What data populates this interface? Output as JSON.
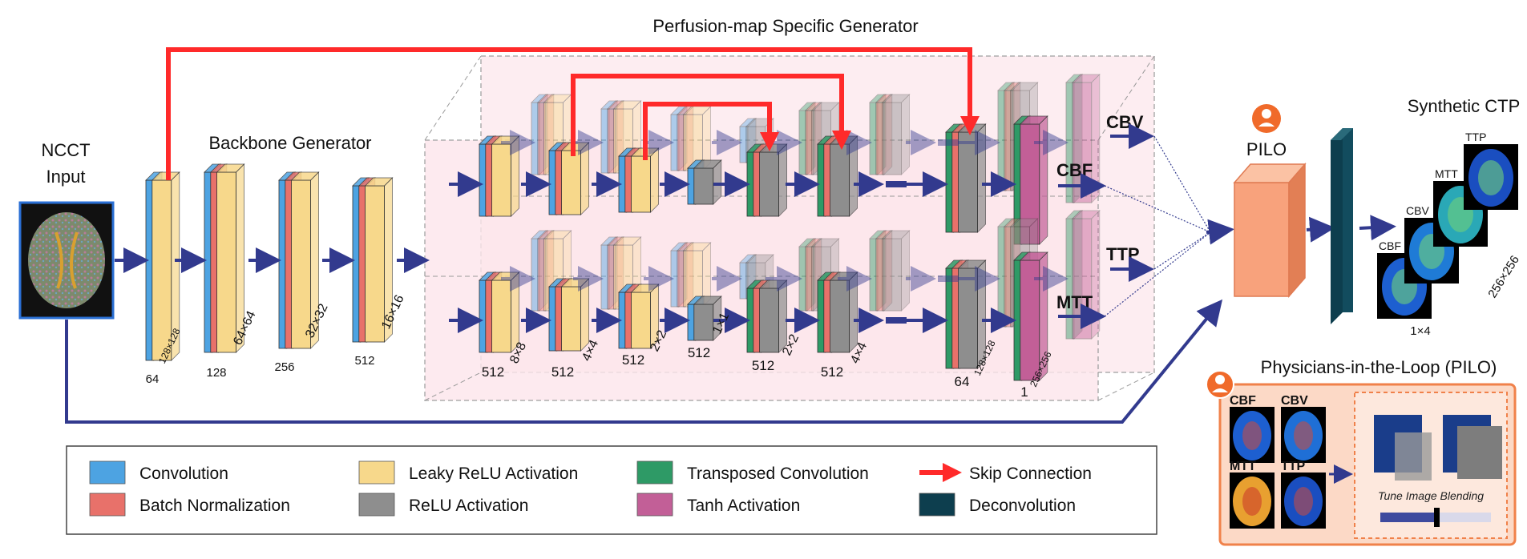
{
  "colors": {
    "convolution": "#4da3e2",
    "batch_norm": "#e8716a",
    "leaky_relu": "#f7d88b",
    "relu": "#8e8e8e",
    "transposed_conv": "#2e9a66",
    "tanh": "#c25f97",
    "skip": "#ff2a2a",
    "deconv": "#0d3e4e",
    "arrow": "#323a8e",
    "pilo_box": "#f8a27c",
    "pink_block": "#fbe4ea"
  },
  "titles": {
    "pms_generator": "Perfusion-map Specific Generator",
    "backbone": "Backbone Generator",
    "input_line1": "NCCT",
    "input_line2": "Input",
    "pilo": "PILO",
    "synthetic": "Synthetic CTP",
    "pilo_full": "Physicians-in-the-Loop (PILO)",
    "tune": "Tune Image Blending"
  },
  "backbone": [
    {
      "ch": "64",
      "size": "128×128"
    },
    {
      "ch": "128",
      "size": "64×64"
    },
    {
      "ch": "256",
      "size": "32×32"
    },
    {
      "ch": "512",
      "size": "16×16"
    }
  ],
  "pms_labels": [
    {
      "ch": "512",
      "size": "8×8"
    },
    {
      "ch": "512",
      "size": "4×4"
    },
    {
      "ch": "512",
      "size": "2×2"
    },
    {
      "ch": "512",
      "size": "1×1"
    },
    {
      "ch": "512",
      "size": "2×2"
    },
    {
      "ch": "512",
      "size": "4×4"
    },
    {
      "ch": "64",
      "size": "128×128"
    },
    {
      "ch": "1",
      "size": "256×256"
    }
  ],
  "maps": [
    "CBV",
    "CBF",
    "TTP",
    "MTT"
  ],
  "synthetic": {
    "stack": [
      "CBF",
      "CBV",
      "MTT",
      "TTP"
    ],
    "size": "256×256",
    "count": "1×4"
  },
  "pilo_panel": [
    "CBF",
    "CBV",
    "MTT",
    "TTP"
  ],
  "legend": [
    {
      "label": "Convolution",
      "key": "convolution"
    },
    {
      "label": "Leaky ReLU Activation",
      "key": "leaky_relu"
    },
    {
      "label": "Transposed Convolution",
      "key": "transposed_conv"
    },
    {
      "label": "Skip Connection",
      "key": "skip"
    },
    {
      "label": "Batch Normalization",
      "key": "batch_norm"
    },
    {
      "label": "ReLU Activation",
      "key": "relu"
    },
    {
      "label": "Tanh Activation",
      "key": "tanh"
    },
    {
      "label": "Deconvolution",
      "key": "deconv"
    }
  ]
}
